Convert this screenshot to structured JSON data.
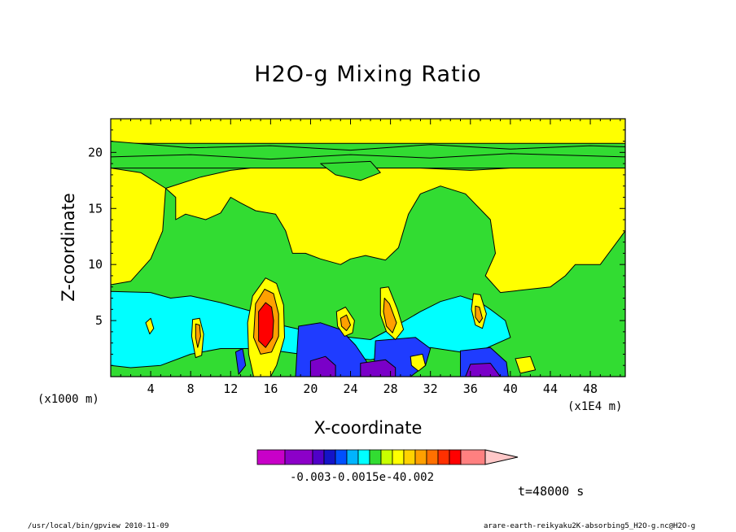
{
  "chart_data": {
    "type": "heatmap",
    "title": "H2O-g Mixing Ratio",
    "xlabel": "X-coordinate",
    "ylabel": "Z-coordinate",
    "x_unit_label": "(x1000 m)",
    "x_scale_label": "(x1E4 m)",
    "xlim": [
      0,
      51.5
    ],
    "ylim": [
      0,
      23
    ],
    "x_ticks": [
      4,
      8,
      12,
      16,
      20,
      24,
      28,
      32,
      36,
      40,
      44,
      48
    ],
    "y_ticks": [
      5,
      10,
      15,
      20
    ],
    "colorbar": {
      "colors": [
        "#c800c8",
        "#8c00c8",
        "#5000c8",
        "#1414c8",
        "#0050ff",
        "#00b4ff",
        "#00ffff",
        "#32dc32",
        "#c8ff00",
        "#ffff00",
        "#ffd200",
        "#ffa000",
        "#ff7000",
        "#ff3000",
        "#ff0000",
        "#ff8080",
        "#ffc8c8"
      ],
      "tick_label_text": "-0.003-0.0015e-40.002"
    },
    "regions": [
      {
        "level": "green",
        "polygon": [
          [
            0,
            18.6
          ],
          [
            51.5,
            18.6
          ],
          [
            51.5,
            0
          ],
          [
            0,
            0
          ]
        ]
      },
      {
        "level": "yellow",
        "polygon": [
          [
            0,
            18.6
          ],
          [
            3,
            18.2
          ],
          [
            5.5,
            16.8
          ],
          [
            5.2,
            13
          ],
          [
            4,
            10.5
          ],
          [
            2,
            8.5
          ],
          [
            0,
            8.2
          ]
        ]
      },
      {
        "level": "yellow",
        "polygon": [
          [
            5.5,
            16.8
          ],
          [
            9,
            17.8
          ],
          [
            12,
            18.4
          ],
          [
            14,
            18.6
          ],
          [
            31,
            18.6
          ],
          [
            36,
            18.4
          ],
          [
            40,
            18.6
          ],
          [
            51.5,
            18.6
          ],
          [
            51.5,
            13
          ],
          [
            49,
            10
          ],
          [
            46.5,
            10
          ],
          [
            45.5,
            9
          ],
          [
            44,
            8
          ],
          [
            39,
            7.5
          ],
          [
            37.5,
            9
          ],
          [
            38.5,
            11
          ],
          [
            38,
            14
          ],
          [
            35.5,
            16.3
          ],
          [
            33,
            17
          ],
          [
            31,
            16.3
          ],
          [
            29.8,
            14.5
          ],
          [
            28.8,
            11.5
          ],
          [
            27.5,
            10.4
          ],
          [
            25.5,
            10.8
          ],
          [
            24,
            10.5
          ],
          [
            23,
            10
          ],
          [
            21,
            10.5
          ],
          [
            19.5,
            11
          ],
          [
            18.2,
            11
          ],
          [
            17.5,
            13
          ],
          [
            16.5,
            14.5
          ],
          [
            14.5,
            14.8
          ],
          [
            13,
            15.5
          ],
          [
            12,
            16
          ],
          [
            11,
            14.6
          ],
          [
            9.5,
            14
          ],
          [
            7.5,
            14.5
          ],
          [
            6.5,
            14
          ],
          [
            6.5,
            16
          ]
        ]
      },
      {
        "level": "green",
        "polygon": [
          [
            21,
            19
          ],
          [
            22.5,
            18
          ],
          [
            25,
            17.5
          ],
          [
            27,
            18.2
          ],
          [
            26,
            19.2
          ]
        ]
      },
      {
        "level": "yellow",
        "polygon": [
          [
            0,
            23
          ],
          [
            51.5,
            23
          ],
          [
            51.5,
            20.8
          ],
          [
            0,
            20.8
          ]
        ]
      },
      {
        "level": "green",
        "polygon": [
          [
            0,
            21
          ],
          [
            8,
            20.4
          ],
          [
            16,
            20.6
          ],
          [
            24,
            20.2
          ],
          [
            32,
            20.7
          ],
          [
            40,
            20.3
          ],
          [
            48,
            20.6
          ],
          [
            51.5,
            20.5
          ],
          [
            51.5,
            19.6
          ],
          [
            40,
            19.9
          ],
          [
            32,
            19.5
          ],
          [
            24,
            19.8
          ],
          [
            16,
            19.4
          ],
          [
            8,
            19.8
          ],
          [
            0,
            19.6
          ]
        ]
      },
      {
        "level": "cyan",
        "polygon": [
          [
            0,
            7.6
          ],
          [
            4,
            7.5
          ],
          [
            6,
            7
          ],
          [
            8,
            7.2
          ],
          [
            11,
            6.6
          ],
          [
            15,
            5.6
          ],
          [
            17,
            4.6
          ],
          [
            20,
            4
          ],
          [
            23,
            3.6
          ],
          [
            26,
            3.3
          ],
          [
            28.5,
            4.5
          ],
          [
            31,
            5.8
          ],
          [
            33,
            6.7
          ],
          [
            35,
            7.2
          ],
          [
            37,
            6.6
          ],
          [
            38,
            6
          ],
          [
            39.5,
            5
          ],
          [
            40,
            3.5
          ],
          [
            37.5,
            2.5
          ],
          [
            35,
            2.2
          ],
          [
            32,
            2.6
          ],
          [
            29,
            2
          ],
          [
            26,
            1.5
          ],
          [
            23,
            1.8
          ],
          [
            19,
            2
          ],
          [
            15,
            2.5
          ],
          [
            11,
            2.5
          ],
          [
            8,
            2
          ],
          [
            5,
            1
          ],
          [
            2,
            0.8
          ],
          [
            0,
            1
          ]
        ]
      },
      {
        "level": "blue",
        "polygon": [
          [
            18.8,
            4.5
          ],
          [
            21,
            4.8
          ],
          [
            23,
            4.2
          ],
          [
            24.5,
            2.8
          ],
          [
            25.5,
            1.5
          ],
          [
            26.5,
            0
          ],
          [
            18.5,
            0
          ]
        ]
      },
      {
        "level": "blue",
        "polygon": [
          [
            26.5,
            3.2
          ],
          [
            30.5,
            3.5
          ],
          [
            32,
            2.5
          ],
          [
            31.5,
            1
          ],
          [
            30,
            0
          ],
          [
            26.3,
            0
          ]
        ]
      },
      {
        "level": "blue",
        "polygon": [
          [
            35,
            2.3
          ],
          [
            38,
            2.6
          ],
          [
            39.6,
            1.3
          ],
          [
            39.8,
            0
          ],
          [
            35,
            0
          ]
        ]
      },
      {
        "level": "blue",
        "polygon": [
          [
            12.5,
            2.2
          ],
          [
            13.2,
            2.5
          ],
          [
            13.5,
            1
          ],
          [
            12.8,
            0.2
          ]
        ]
      },
      {
        "level": "violet",
        "polygon": [
          [
            20,
            1.4
          ],
          [
            21.5,
            1.8
          ],
          [
            22.5,
            1
          ],
          [
            22.5,
            0
          ],
          [
            20,
            0
          ]
        ]
      },
      {
        "level": "violet",
        "polygon": [
          [
            25,
            1.2
          ],
          [
            27.5,
            1.5
          ],
          [
            28.5,
            0.8
          ],
          [
            28.5,
            0
          ],
          [
            25,
            0
          ]
        ]
      },
      {
        "level": "violet",
        "polygon": [
          [
            36,
            1.1
          ],
          [
            38,
            1.2
          ],
          [
            39,
            0
          ],
          [
            35.5,
            0
          ]
        ]
      },
      {
        "level": "yellow",
        "polygon": [
          [
            14.2,
            7.2
          ],
          [
            15.5,
            8.8
          ],
          [
            16.6,
            8.3
          ],
          [
            17.3,
            6.4
          ],
          [
            17.4,
            3.5
          ],
          [
            16.6,
            1
          ],
          [
            16,
            0
          ],
          [
            14.3,
            0
          ],
          [
            13.8,
            2
          ],
          [
            13.7,
            4.8
          ]
        ]
      },
      {
        "level": "orange",
        "polygon": [
          [
            14.5,
            6.5
          ],
          [
            15.4,
            7.8
          ],
          [
            16.3,
            7.4
          ],
          [
            16.8,
            5.6
          ],
          [
            16.8,
            3.6
          ],
          [
            16.1,
            2.2
          ],
          [
            15,
            2
          ],
          [
            14.3,
            3.5
          ]
        ]
      },
      {
        "level": "red",
        "polygon": [
          [
            14.8,
            5.8
          ],
          [
            15.5,
            6.6
          ],
          [
            16.1,
            6.2
          ],
          [
            16.3,
            5
          ],
          [
            16.2,
            3.5
          ],
          [
            15.5,
            2.6
          ],
          [
            14.8,
            3.2
          ]
        ]
      },
      {
        "level": "yellow",
        "polygon": [
          [
            3.5,
            4.8
          ],
          [
            4,
            5.2
          ],
          [
            4.3,
            4.3
          ],
          [
            3.9,
            3.8
          ]
        ]
      },
      {
        "level": "yellow",
        "polygon": [
          [
            8.2,
            5.1
          ],
          [
            8.9,
            5.2
          ],
          [
            9.3,
            3.8
          ],
          [
            9.1,
            1.9
          ],
          [
            8.5,
            1.7
          ],
          [
            8.1,
            3.6
          ]
        ]
      },
      {
        "level": "orange",
        "polygon": [
          [
            8.5,
            4.7
          ],
          [
            8.9,
            4.6
          ],
          [
            9,
            3.6
          ],
          [
            8.7,
            2.6
          ],
          [
            8.5,
            3.5
          ]
        ]
      },
      {
        "level": "yellow",
        "polygon": [
          [
            22.6,
            5.8
          ],
          [
            23.5,
            6.2
          ],
          [
            24.4,
            5
          ],
          [
            24.2,
            3.9
          ],
          [
            23.4,
            3.6
          ],
          [
            22.7,
            4.5
          ]
        ]
      },
      {
        "level": "orange",
        "polygon": [
          [
            23,
            5.2
          ],
          [
            23.6,
            5.5
          ],
          [
            24,
            4.6
          ],
          [
            23.6,
            4.1
          ],
          [
            23.1,
            4.5
          ]
        ]
      },
      {
        "level": "yellow",
        "polygon": [
          [
            27,
            7.9
          ],
          [
            27.8,
            8
          ],
          [
            28.7,
            6
          ],
          [
            29.3,
            4.2
          ],
          [
            28.5,
            3.3
          ],
          [
            27.6,
            4
          ],
          [
            27,
            5.5
          ]
        ]
      },
      {
        "level": "orange",
        "polygon": [
          [
            27.4,
            7
          ],
          [
            27.9,
            6.5
          ],
          [
            28.6,
            4.8
          ],
          [
            28.2,
            3.9
          ],
          [
            27.6,
            4.5
          ],
          [
            27.3,
            5.8
          ]
        ]
      },
      {
        "level": "yellow",
        "polygon": [
          [
            36.3,
            7.4
          ],
          [
            37,
            7.3
          ],
          [
            37.6,
            5.6
          ],
          [
            37.2,
            4.3
          ],
          [
            36.5,
            4.6
          ],
          [
            36.1,
            6
          ]
        ]
      },
      {
        "level": "orange",
        "polygon": [
          [
            36.5,
            6.3
          ],
          [
            36.9,
            6.2
          ],
          [
            37.2,
            5.2
          ],
          [
            36.9,
            4.8
          ],
          [
            36.5,
            5.3
          ]
        ]
      },
      {
        "level": "yellow",
        "polygon": [
          [
            30,
            1.8
          ],
          [
            31.2,
            2
          ],
          [
            31.5,
            1
          ],
          [
            30.8,
            0.5
          ],
          [
            30.1,
            1
          ]
        ]
      },
      {
        "level": "yellow",
        "polygon": [
          [
            40.5,
            1.6
          ],
          [
            42,
            1.8
          ],
          [
            42.5,
            0.6
          ],
          [
            41,
            0.3
          ]
        ]
      }
    ]
  },
  "labels": {
    "x_unit": "(x1000 m)",
    "x_scale": "(x1E4 m)",
    "time": "t=48000 s",
    "footer_left": "/usr/local/bin/gpview  2010-11-09",
    "footer_right": "arare-earth-reikyaku2K-absorbing5_H2O-g.nc@H2O-g"
  }
}
